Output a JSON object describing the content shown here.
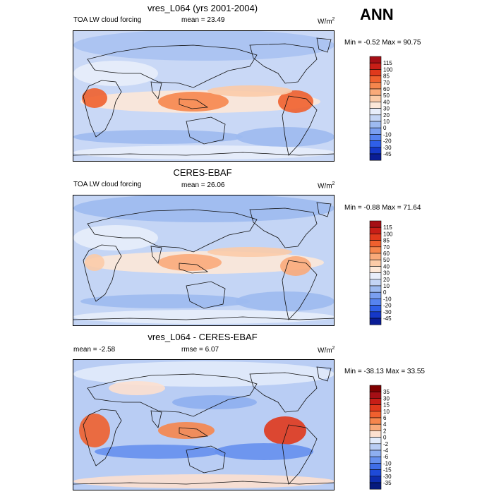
{
  "season": "ANN",
  "units_base": "W/m",
  "units_exp": "2",
  "panels": [
    {
      "title": "vres_L064 (yrs 2001-2004)",
      "left_label": "TOA LW cloud forcing",
      "center_label": "mean =  23.49",
      "minmax": "Min =  -0.52 Max =  90.75",
      "colorbar": {
        "labels": [
          "115",
          "100",
          "85",
          "70",
          "60",
          "50",
          "40",
          "30",
          "20",
          "10",
          "0",
          "-10",
          "-20",
          "-30",
          "-45"
        ],
        "colors": [
          "#a50f15",
          "#c81e17",
          "#e0391c",
          "#f0602e",
          "#f6864d",
          "#f9aa7a",
          "#fbcba8",
          "#fde8d8",
          "#e8eefb",
          "#c4d5f5",
          "#9dbaf0",
          "#7a9ff0",
          "#5683f0",
          "#2f5fe8",
          "#1538c8",
          "#0a1d96"
        ]
      }
    },
    {
      "title": "CERES-EBAF",
      "left_label": "TOA LW cloud forcing",
      "center_label": "mean =  26.06",
      "minmax": "Min =  -0.88 Max =  71.64",
      "colorbar": {
        "labels": [
          "115",
          "100",
          "85",
          "70",
          "60",
          "50",
          "40",
          "30",
          "20",
          "10",
          "0",
          "-10",
          "-20",
          "-30",
          "-45"
        ],
        "colors": [
          "#a50f15",
          "#c81e17",
          "#e0391c",
          "#f0602e",
          "#f6864d",
          "#f9aa7a",
          "#fbcba8",
          "#fde8d8",
          "#e8eefb",
          "#c4d5f5",
          "#9dbaf0",
          "#7a9ff0",
          "#5683f0",
          "#2f5fe8",
          "#1538c8",
          "#0a1d96"
        ]
      }
    },
    {
      "title": "vres_L064 - CERES-EBAF",
      "left_label": "mean =  -2.58",
      "center_label": "rmse =   6.07",
      "minmax": "Min = -38.13 Max =  33.55",
      "colorbar": {
        "labels": [
          "35",
          "30",
          "15",
          "10",
          "6",
          "4",
          "2",
          "0",
          "-2",
          "-4",
          "-6",
          "-10",
          "-15",
          "-30",
          "-35"
        ],
        "colors": [
          "#7f0000",
          "#a50f15",
          "#c81e17",
          "#e0391c",
          "#f0602e",
          "#f6864d",
          "#f9aa7a",
          "#fde0cf",
          "#e2ebfb",
          "#b9cdf4",
          "#8eaff0",
          "#6690ee",
          "#3f6ee8",
          "#1e4ad8",
          "#0d2cae",
          "#061a7d"
        ]
      }
    }
  ]
}
